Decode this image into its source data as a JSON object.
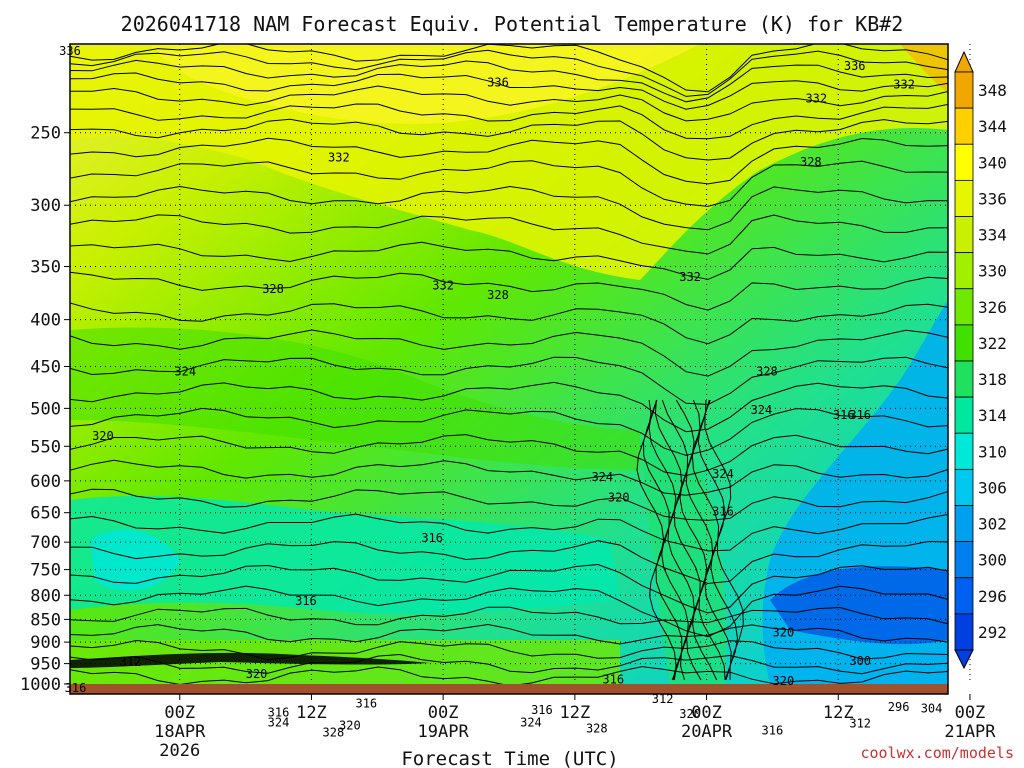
{
  "chart_data": {
    "type": "heatmap",
    "title": "2026041718 NAM Forecast Equiv. Potential Temperature (K) for KB#2",
    "xlabel": "Forecast Time (UTC)",
    "credit": "coolwx.com/models",
    "y_axis": {
      "scale": "log",
      "reversed": true,
      "ylim": [
        1000,
        200
      ],
      "ticks": [
        250,
        300,
        350,
        400,
        450,
        500,
        550,
        600,
        650,
        700,
        750,
        800,
        850,
        900,
        950,
        1000
      ]
    },
    "x_axis": {
      "range_hours": [
        -4,
        76
      ],
      "ticks": [
        {
          "hour": 6,
          "lines": [
            "00Z",
            "18APR",
            "2026"
          ]
        },
        {
          "hour": 18,
          "lines": [
            "12Z"
          ]
        },
        {
          "hour": 30,
          "lines": [
            "00Z",
            "19APR"
          ]
        },
        {
          "hour": 42,
          "lines": [
            "12Z"
          ]
        },
        {
          "hour": 54,
          "lines": [
            "00Z",
            "20APR"
          ]
        },
        {
          "hour": 66,
          "lines": [
            "12Z"
          ]
        },
        {
          "hour": 78,
          "lines": [
            "00Z",
            "21APR"
          ]
        }
      ]
    },
    "grid": "dotted",
    "colorbar": {
      "position": "right",
      "levels": [
        348,
        344,
        340,
        336,
        334,
        330,
        326,
        322,
        318,
        314,
        310,
        306,
        302,
        300,
        296,
        292
      ],
      "colors": [
        "#f0a800",
        "#ffd000",
        "#ffff00",
        "#e6f500",
        "#c8f000",
        "#a0f000",
        "#70e800",
        "#40e000",
        "#20e060",
        "#00e8a0",
        "#00e8d8",
        "#00c8f0",
        "#00a0f0",
        "#0080f0",
        "#0060f0",
        "#0040e0"
      ]
    },
    "contour_labels": [
      {
        "hour": -4.0,
        "p": 205,
        "value": "336"
      },
      {
        "hour": 35.0,
        "p": 222,
        "value": "336"
      },
      {
        "hour": 67.5,
        "p": 213,
        "value": "336"
      },
      {
        "hour": 20.5,
        "p": 268,
        "value": "332"
      },
      {
        "hour": 64.0,
        "p": 231,
        "value": "332"
      },
      {
        "hour": 72.0,
        "p": 223,
        "value": "332"
      },
      {
        "hour": 63.5,
        "p": 271,
        "value": "328"
      },
      {
        "hour": 14.5,
        "p": 373,
        "value": "328"
      },
      {
        "hour": 30.0,
        "p": 370,
        "value": "332"
      },
      {
        "hour": 35.0,
        "p": 379,
        "value": "328"
      },
      {
        "hour": 52.5,
        "p": 362,
        "value": "332"
      },
      {
        "hour": 6.5,
        "p": 459,
        "value": "324"
      },
      {
        "hour": 59.5,
        "p": 459,
        "value": "328"
      },
      {
        "hour": 59.0,
        "p": 506,
        "value": "324"
      },
      {
        "hour": 66.5,
        "p": 512,
        "value": "316"
      },
      {
        "hour": 68.0,
        "p": 512,
        "value": "316"
      },
      {
        "hour": -1.0,
        "p": 540,
        "value": "320"
      },
      {
        "hour": 44.5,
        "p": 599,
        "value": "324"
      },
      {
        "hour": 46.0,
        "p": 630,
        "value": "320"
      },
      {
        "hour": 55.5,
        "p": 594,
        "value": "324"
      },
      {
        "hour": 55.5,
        "p": 653,
        "value": "316"
      },
      {
        "hour": 29.0,
        "p": 698,
        "value": "316"
      },
      {
        "hour": 17.5,
        "p": 818,
        "value": "316"
      },
      {
        "hour": 61.0,
        "p": 885,
        "value": "320"
      },
      {
        "hour": 68.0,
        "p": 951,
        "value": "300"
      },
      {
        "hour": 13.0,
        "p": 983,
        "value": "320"
      },
      {
        "hour": 1.5,
        "p": 953,
        "value": "312"
      },
      {
        "hour": 45.5,
        "p": 996,
        "value": "316"
      },
      {
        "hour": 61.0,
        "p": 1000,
        "value": "320"
      },
      {
        "hour": -3.5,
        "p": 1018,
        "value": "316"
      },
      {
        "hour": 23.0,
        "p": 1058,
        "value": "316"
      },
      {
        "hour": 50.0,
        "p": 1046,
        "value": "312"
      },
      {
        "hour": 39.0,
        "p": 1075,
        "value": "316"
      },
      {
        "hour": 52.5,
        "p": 1086,
        "value": "320"
      },
      {
        "hour": 74.5,
        "p": 1071,
        "value": "304"
      },
      {
        "hour": 71.5,
        "p": 1067,
        "value": "296"
      },
      {
        "hour": 15.0,
        "p": 1083,
        "value": "316"
      },
      {
        "hour": 15.0,
        "p": 1110,
        "value": "324"
      },
      {
        "hour": 21.5,
        "p": 1118,
        "value": "320"
      },
      {
        "hour": 38.0,
        "p": 1110,
        "value": "324"
      },
      {
        "hour": 20.0,
        "p": 1138,
        "value": "328"
      },
      {
        "hour": 44.0,
        "p": 1127,
        "value": "328"
      },
      {
        "hour": 60.0,
        "p": 1132,
        "value": "316"
      },
      {
        "hour": 68.0,
        "p": 1113,
        "value": "312"
      }
    ]
  }
}
